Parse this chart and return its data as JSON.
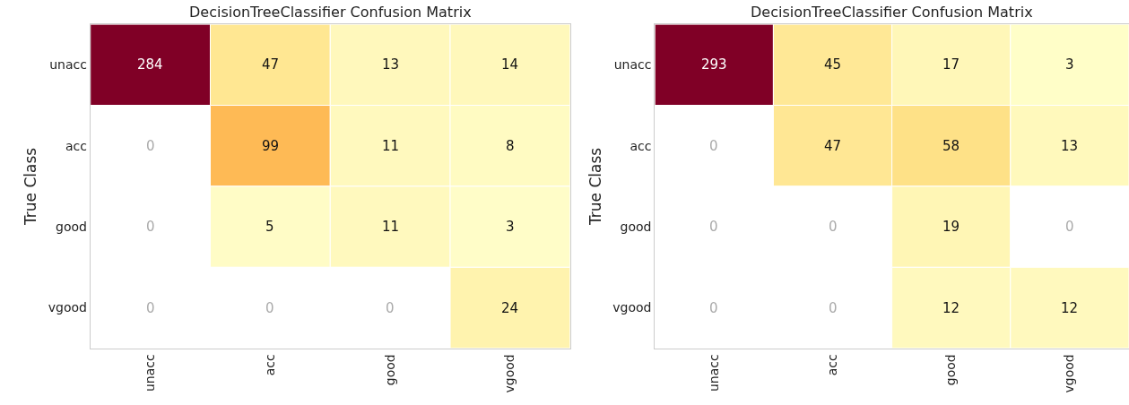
{
  "chart_data": [
    {
      "type": "heatmap",
      "title": "DecisionTreeClassifier Confusion Matrix",
      "ylabel": "True Class",
      "data_labels": true,
      "categories": [
        "unacc",
        "acc",
        "good",
        "vgood"
      ],
      "y_categories": [
        "unacc",
        "acc",
        "good",
        "vgood"
      ],
      "cells": [
        [
          284,
          47,
          13,
          14
        ],
        [
          0,
          99,
          11,
          8
        ],
        [
          0,
          5,
          11,
          3
        ],
        [
          0,
          0,
          0,
          24
        ]
      ]
    },
    {
      "type": "heatmap",
      "title": "DecisionTreeClassifier Confusion Matrix",
      "ylabel": "True Class",
      "data_labels": true,
      "categories": [
        "unacc",
        "acc",
        "good",
        "vgood"
      ],
      "y_categories": [
        "unacc",
        "acc",
        "good",
        "vgood"
      ],
      "cells": [
        [
          293,
          45,
          17,
          3
        ],
        [
          0,
          47,
          58,
          13
        ],
        [
          0,
          0,
          19,
          0
        ],
        [
          0,
          0,
          12,
          12
        ]
      ]
    }
  ]
}
